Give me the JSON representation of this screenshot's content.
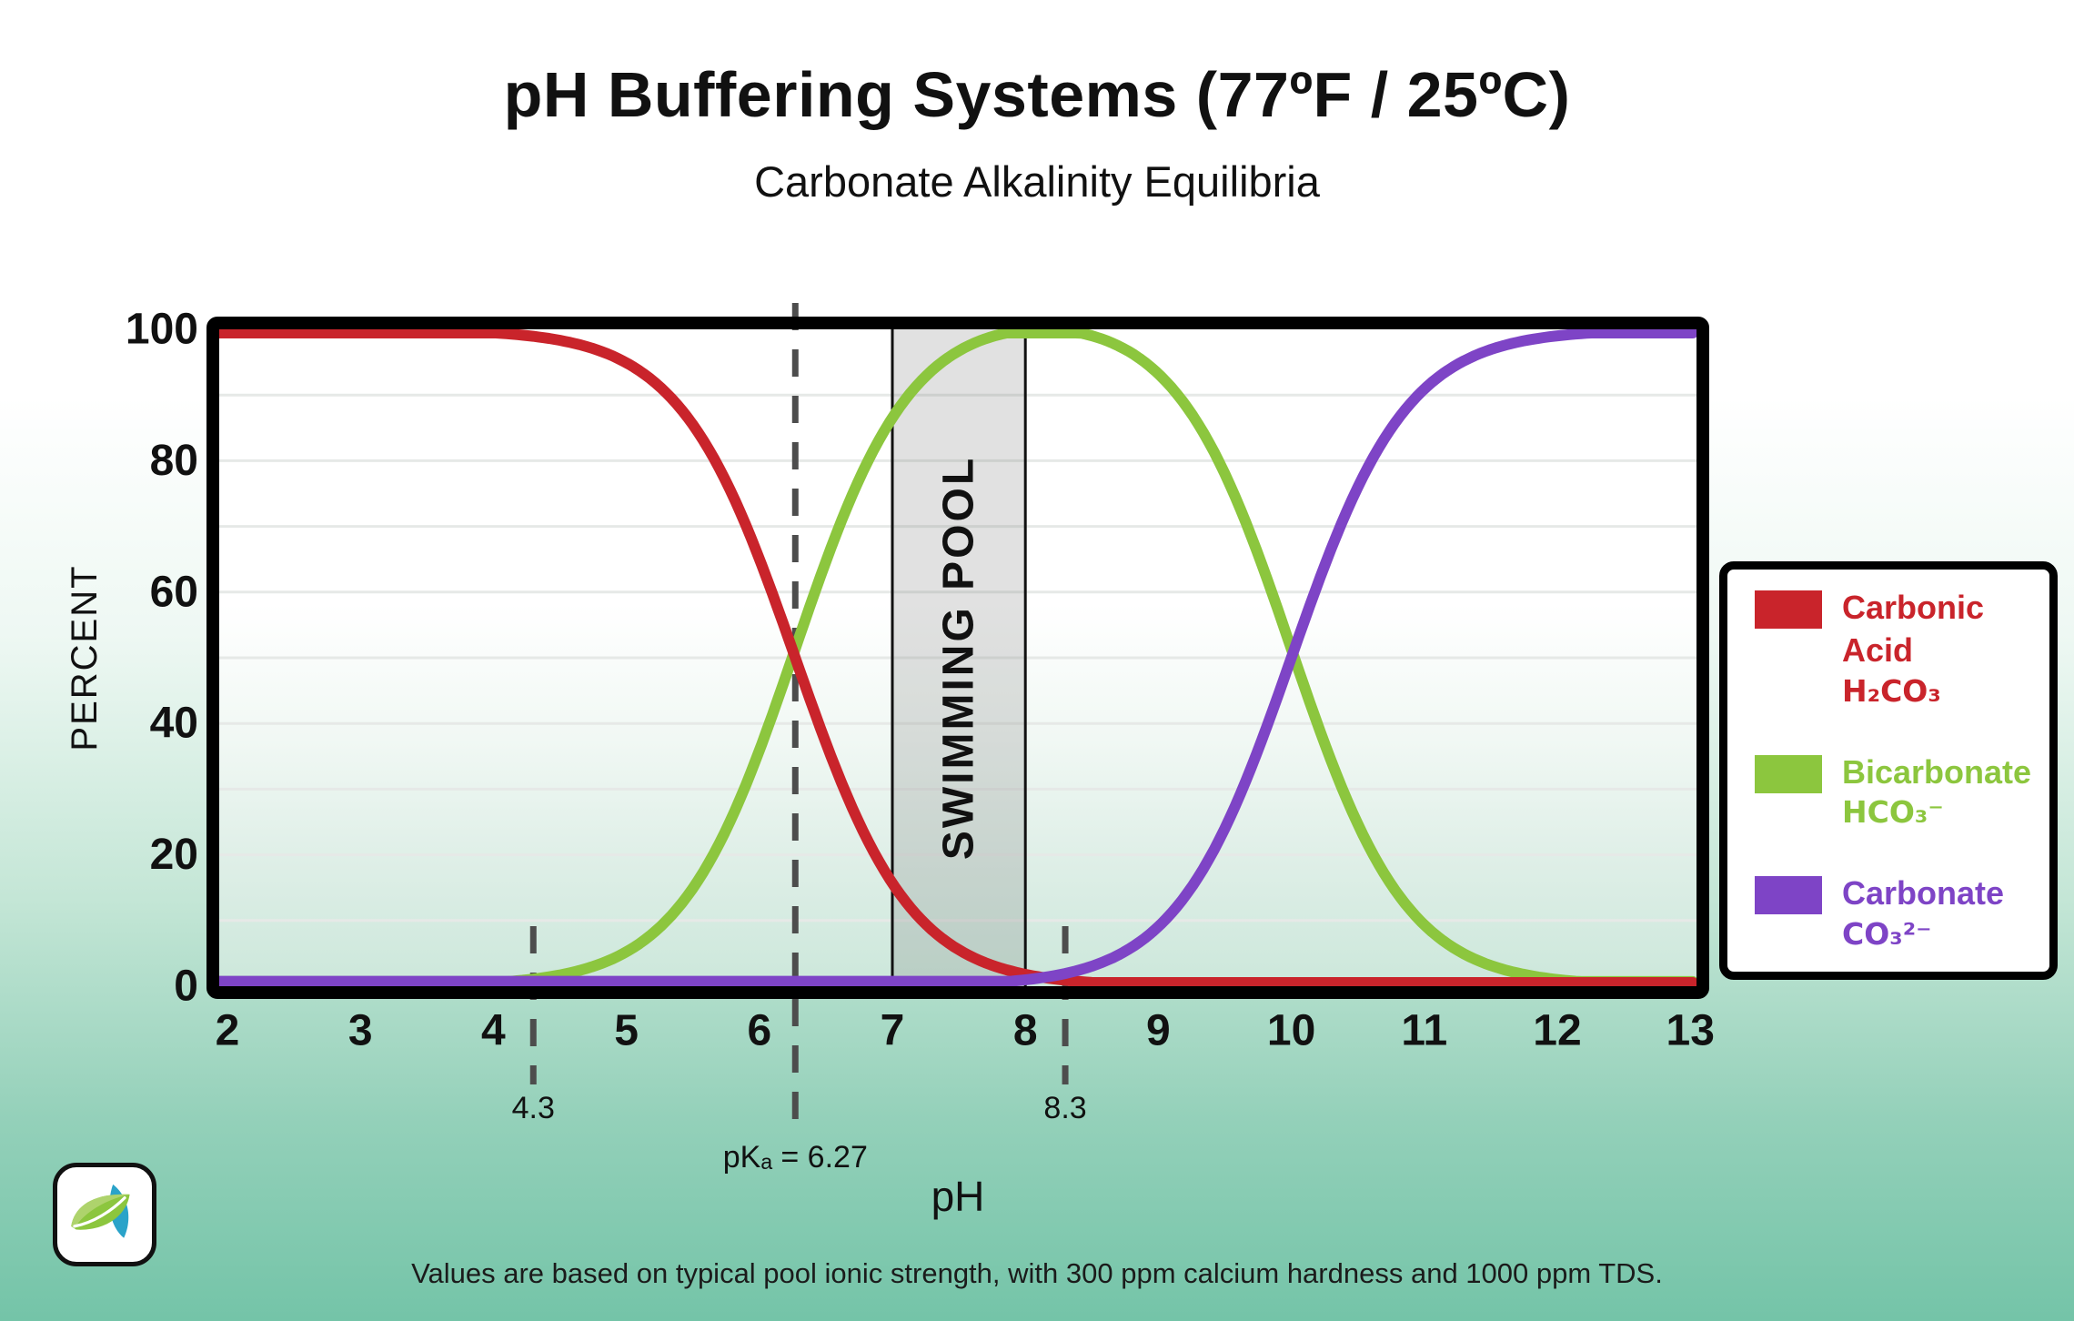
{
  "title": "pH Buffering Systems (77ºF / 25ºC)",
  "subtitle": "Carbonate Alkalinity Equilibria",
  "footer": "Values are based on typical pool ionic strength, with 300 ppm calcium hardness and 1000 ppm TDS.",
  "axes": {
    "y_label": "PERCENT",
    "x_label": "pH",
    "y_ticks": [
      0,
      20,
      40,
      60,
      80,
      100
    ],
    "x_ticks": [
      2,
      3,
      4,
      5,
      6,
      7,
      8,
      9,
      10,
      11,
      12,
      13
    ],
    "ylim": [
      0,
      100
    ],
    "xlim": [
      2,
      13
    ],
    "grid_step": 10
  },
  "legend": {
    "entries": [
      {
        "name": "Carbonic Acid",
        "formula": "H₂CO₃",
        "color": "#c9242b"
      },
      {
        "name": "Bicarbonate",
        "formula": "HCO₃⁻",
        "color": "#8cc63e"
      },
      {
        "name": "Carbonate",
        "formula": "CO₃²⁻",
        "color": "#7e44c6"
      }
    ]
  },
  "chart_data": {
    "type": "line",
    "title": "pH Buffering Systems (77ºF / 25ºC)",
    "xlabel": "pH",
    "ylabel": "PERCENT",
    "xlim": [
      2,
      13
    ],
    "ylim": [
      0,
      100
    ],
    "grid": "horizontal, every 10 percent",
    "legend_position": "right, boxed",
    "x": [
      2,
      3,
      4,
      5,
      6,
      7,
      8,
      9,
      10,
      11,
      12,
      13
    ],
    "series": [
      {
        "name": "Carbonic Acid H₂CO₃",
        "color": "#c9242b",
        "values": [
          100,
          99.9,
          99.5,
          94.9,
          65.1,
          15.7,
          1.8,
          0.2,
          0,
          0,
          0,
          0
        ]
      },
      {
        "name": "Bicarbonate HCO₃⁻",
        "color": "#8cc63e",
        "values": [
          0,
          0.1,
          0.5,
          5.1,
          34.9,
          84.3,
          97.2,
          90.7,
          50,
          9.1,
          1,
          0.1
        ]
      },
      {
        "name": "Carbonate CO₃²⁻",
        "color": "#7e44c6",
        "values": [
          0,
          0,
          0,
          0,
          0,
          0.1,
          1,
          9.1,
          50,
          90.9,
          99,
          99.9
        ]
      }
    ],
    "params": {
      "pK1": 6.27,
      "pK2": 10.0
    },
    "dashed_lines": [
      {
        "ph": 4.3,
        "label": "4.3",
        "kind": "stub"
      },
      {
        "ph": 6.27,
        "label": "pKₐ = 6.27",
        "kind": "full"
      },
      {
        "ph": 8.3,
        "label": "8.3",
        "kind": "stub"
      }
    ],
    "band": {
      "label": "SWIMMING POOL",
      "from_ph": 7.0,
      "to_ph": 8.0
    },
    "colors": {
      "dashed": "#4d4d4d",
      "grid": "#e6e9e7",
      "frame": "#000000",
      "band_fill": "rgba(120,120,120,0.22)",
      "band_border": "#111111"
    }
  }
}
